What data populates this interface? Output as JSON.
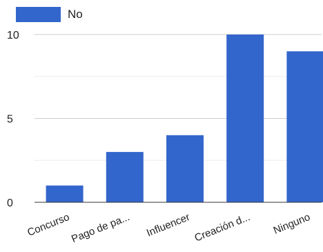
{
  "chart_data": {
    "type": "bar",
    "categories": [
      "Concurso",
      "Pago de pa...",
      "Influencer",
      "Creación d...",
      "Ninguno"
    ],
    "series": [
      {
        "name": "No",
        "values": [
          1,
          3,
          4,
          10,
          9
        ]
      }
    ],
    "ylim": [
      0,
      10
    ],
    "yticks": [
      0,
      5,
      10
    ],
    "grid": true,
    "legend_placement": "top-left",
    "colors": {
      "bar": "#3366cc",
      "grid": "#e0e0e0",
      "axis": "#333333",
      "text": "#222222"
    }
  }
}
